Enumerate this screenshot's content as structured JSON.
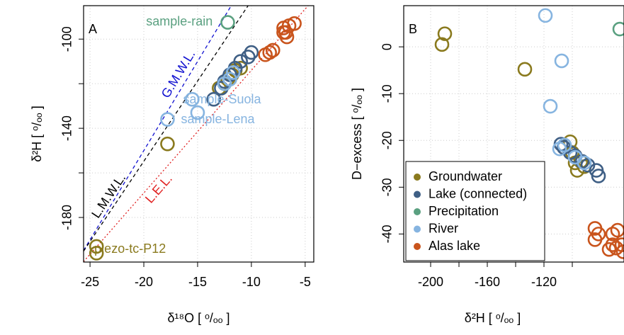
{
  "chart_data": [
    {
      "type": "scatter",
      "panel_label": "A",
      "xlabel": "δ¹⁸O [ ᵒ/ₒₒ ]",
      "ylabel": "δ²H [ ᵒ/ₒₒ ]",
      "xlim": [
        -25.6,
        -4.2
      ],
      "ylim": [
        -200,
        -85
      ],
      "xticks": [
        -25,
        -20,
        -15,
        -10,
        -5
      ],
      "yticks": [
        -100,
        -140,
        -180
      ],
      "minor_yticks": [
        -120,
        -160
      ],
      "grid": true,
      "lines": [
        {
          "label": "G.M.W.L.",
          "slope": 8,
          "intercept": 10,
          "color": "#1010d0",
          "dash": "dashed",
          "label_x": -16,
          "label_side": "above"
        },
        {
          "label": "L.M.W.L.",
          "slope": 7.2,
          "intercept": -10.8,
          "color": "#000000",
          "dash": "dashed",
          "label_x": -22.5,
          "label_side": "above"
        },
        {
          "label": "L.E.L.",
          "slope": 5.5,
          "intercept": -59,
          "color": "#e02020",
          "dash": "dotted",
          "label_x": -19.2,
          "label_side": "below"
        }
      ],
      "annotations": [
        {
          "text": "sample-rain",
          "x": -13.6,
          "y": -92.4,
          "color": "#5aa080",
          "anchor": "end"
        },
        {
          "text": "sample-Suola",
          "x": -16.35,
          "y": -127.4,
          "color": "#86b4e0",
          "anchor": "start"
        },
        {
          "text": "sample-Lena",
          "x": -16.55,
          "y": -136.3,
          "color": "#86b4e0",
          "anchor": "start"
        },
        {
          "text": "piezo-tc-P12",
          "x": -24.6,
          "y": -194.3,
          "color": "#8a7a1e",
          "anchor": "start"
        }
      ],
      "series": [
        {
          "color": "#8a7a1e",
          "x": [
            -24.4,
            -24.4,
            -17.8,
            -11.5,
            -11.8,
            -12.2,
            -12.5,
            -13,
            -11
          ],
          "y": [
            -193,
            -196,
            -147,
            -114,
            -116,
            -118,
            -120,
            -122,
            -113
          ]
        },
        {
          "color": "#3f5f85",
          "x": [
            -10,
            -10.3,
            -11,
            -11.5,
            -12,
            -12.5,
            -13.5,
            -12.8
          ],
          "y": [
            -106,
            -108,
            -110,
            -113,
            -116,
            -119,
            -127,
            -122
          ]
        },
        {
          "color": "#5aa080",
          "x": [
            -12.2
          ],
          "y": [
            -92.5
          ]
        },
        {
          "color": "#86b4e0",
          "x": [
            -17.8,
            -15.5,
            -15,
            -12,
            -12.5,
            -11.7
          ],
          "y": [
            -136,
            -127,
            -133,
            -118,
            -120,
            -115
          ]
        },
        {
          "color": "#c9541c",
          "x": [
            -6,
            -6.5,
            -7,
            -6.8,
            -6.7,
            -8,
            -8.3,
            -8.7,
            -7
          ],
          "y": [
            -93,
            -94,
            -95,
            -97,
            -99,
            -105,
            -106,
            -107,
            -97
          ]
        }
      ]
    },
    {
      "type": "scatter",
      "panel_label": "B",
      "xlabel": "δ²H [ ᵒ/ₒₒ ]",
      "ylabel": "D−excess [ ᵒ/ₒₒ ]",
      "xlim": [
        -219,
        -63.5
      ],
      "ylim": [
        -46,
        8.8
      ],
      "xticks": [
        -200,
        -160,
        -120
      ],
      "minor_xticks": [
        -180,
        -140,
        -100
      ],
      "yticks": [
        0,
        -10,
        -20,
        -30,
        -40
      ],
      "grid": true,
      "legend": "bottom left",
      "series": [
        {
          "name": "Groundwater",
          "color": "#8a7a1e",
          "x": [
            -190,
            -192,
            -133.5,
            -101.5,
            -100,
            -98,
            -96.5,
            -94,
            -91.5
          ],
          "y": [
            2.8,
            0.5,
            -4.8,
            -20.3,
            -22.6,
            -24.8,
            -26.4,
            -24.5,
            -25.6
          ]
        },
        {
          "name": "Lake (connected)",
          "color": "#3f5f85",
          "x": [
            -108,
            -106,
            -101.5,
            -98,
            -93,
            -89,
            -83,
            -81.5
          ],
          "y": [
            -20.8,
            -21.5,
            -22.6,
            -23.3,
            -24.5,
            -25.3,
            -26.4,
            -27.6
          ]
        },
        {
          "name": "Precipitation",
          "color": "#5aa080",
          "x": [
            -66.5
          ],
          "y": [
            3.8
          ]
        },
        {
          "name": "River",
          "color": "#86b4e0",
          "x": [
            -119,
            -107.5,
            -115.5,
            -109,
            -105.5,
            -98,
            -91.5
          ],
          "y": [
            6.7,
            -3,
            -12.7,
            -21.8,
            -21,
            -23.6,
            -24.8
          ]
        },
        {
          "name": "Alas lake",
          "color": "#c9541c",
          "x": [
            -84,
            -84,
            -81.5,
            -71.5,
            -68,
            -71.5,
            -69,
            -65,
            -74,
            -64
          ],
          "y": [
            -38.8,
            -41.2,
            -40,
            -40,
            -39.2,
            -42.3,
            -43,
            -42.3,
            -43.3,
            -43.8
          ]
        }
      ]
    }
  ]
}
